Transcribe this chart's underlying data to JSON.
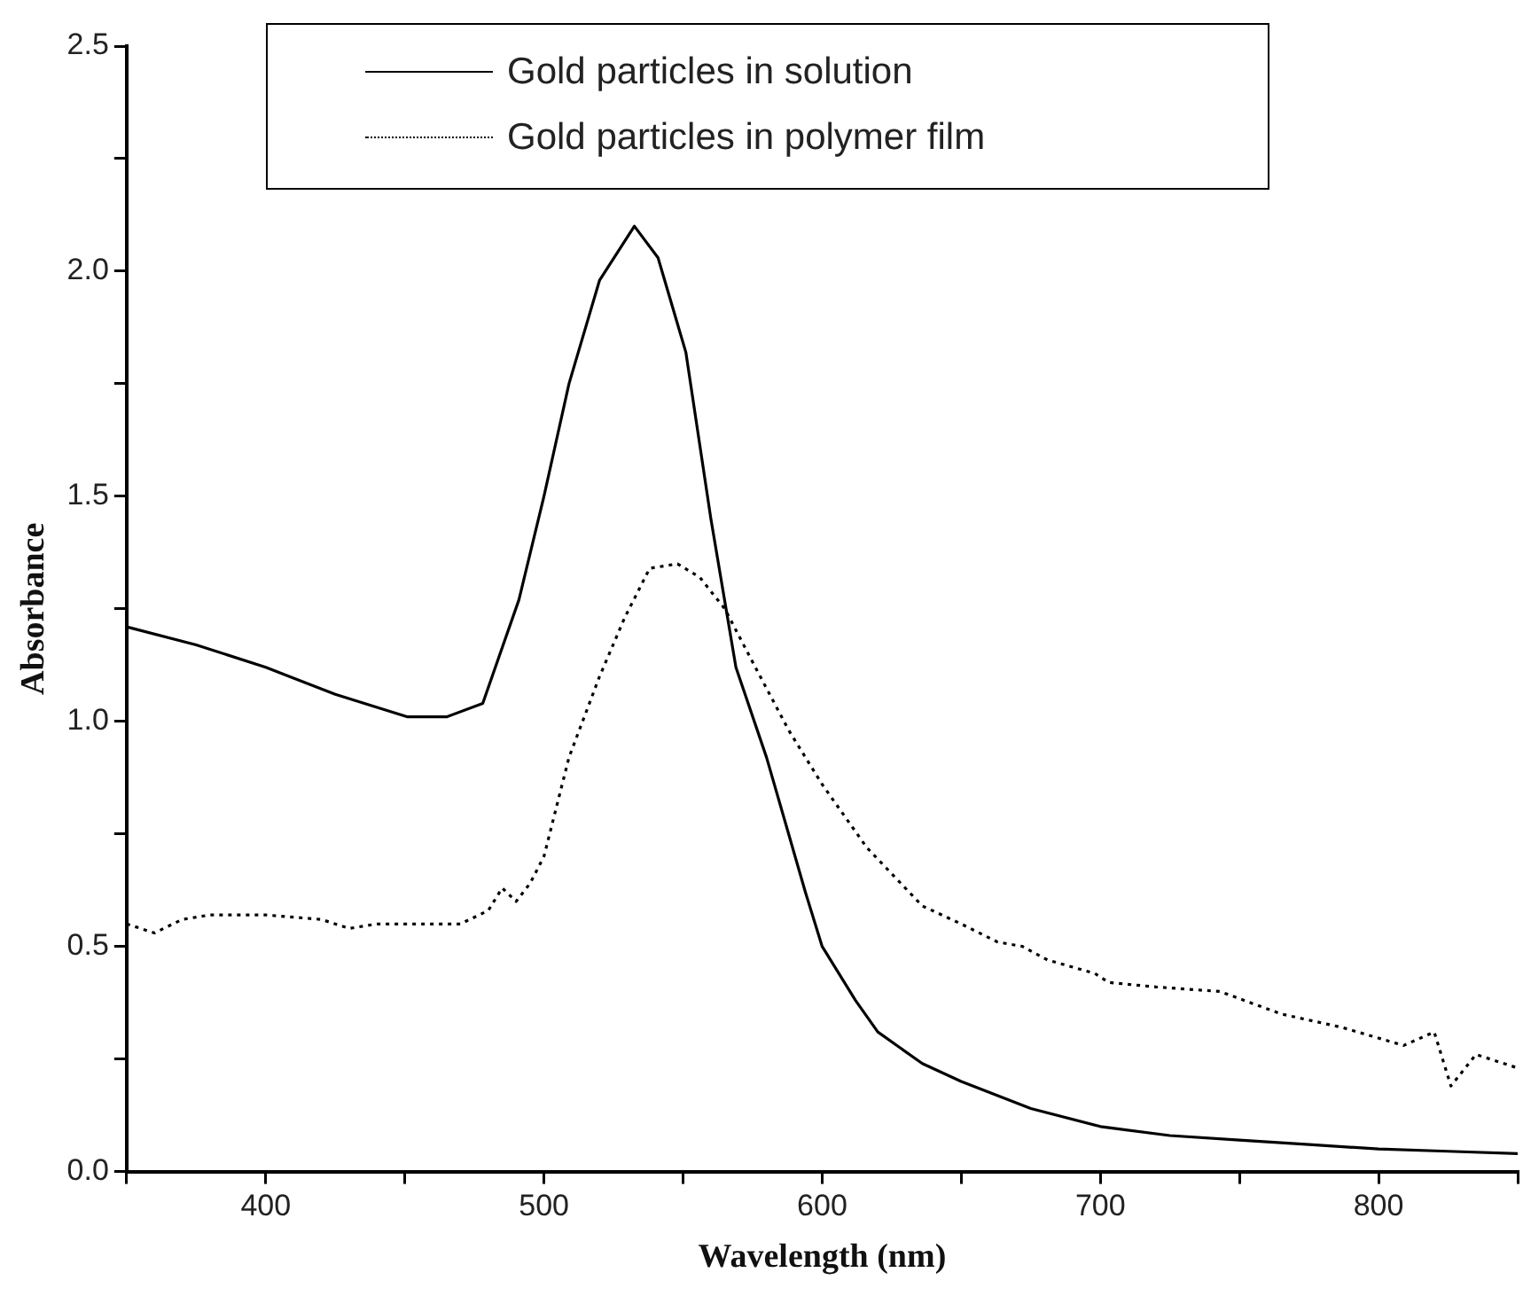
{
  "chart_data": {
    "type": "line",
    "xlabel": "Wavelength (nm)",
    "ylabel": "Absorbance",
    "xlim": [
      350,
      850
    ],
    "ylim": [
      0,
      2.5
    ],
    "xticks": [
      {
        "value": 350,
        "label": null
      },
      400,
      {
        "value": 450,
        "label": null
      },
      500,
      {
        "value": 550,
        "label": null
      },
      600,
      {
        "value": 650,
        "label": null
      },
      700,
      {
        "value": 750,
        "label": null
      },
      800,
      {
        "value": 850,
        "label": null
      }
    ],
    "yticks": [
      {
        "value": 0,
        "label": "0.0"
      },
      {
        "value": 0.25,
        "label": null
      },
      {
        "value": 0.5,
        "label": "0.5"
      },
      {
        "value": 0.75,
        "label": null
      },
      {
        "value": 1,
        "label": "1.0"
      },
      {
        "value": 1.25,
        "label": null
      },
      {
        "value": 1.5,
        "label": "1.5"
      },
      {
        "value": 1.75,
        "label": null
      },
      {
        "value": 2,
        "label": "2.0"
      },
      {
        "value": 2.25,
        "label": null
      },
      {
        "value": 2.5,
        "label": "2.5"
      }
    ],
    "grid": false,
    "legend": "top",
    "marker": "none",
    "series": [
      {
        "name": "Gold particles in solution",
        "color": "#000000",
        "line_style": "solid",
        "x": [
          350,
          375,
          400,
          425,
          451,
          465,
          478,
          491,
          500,
          509,
          520,
          532.5,
          541,
          551,
          560,
          569,
          580,
          587,
          594,
          600,
          612,
          620,
          636,
          650,
          675,
          700,
          725,
          750,
          775,
          800,
          825,
          850
        ],
        "values": [
          1.21,
          1.17,
          1.12,
          1.06,
          1.01,
          1.01,
          1.04,
          1.27,
          1.5,
          1.75,
          1.98,
          2.1,
          2.03,
          1.82,
          1.45,
          1.12,
          0.92,
          0.77,
          0.62,
          0.5,
          0.38,
          0.31,
          0.24,
          0.2,
          0.14,
          0.1,
          0.08,
          0.07,
          0.06,
          0.05,
          0.045,
          0.04
        ]
      },
      {
        "name": "Gold particles in polymer film",
        "color": "#000000",
        "line_style": "dotted",
        "x": [
          350,
          360,
          370,
          380,
          400,
          420,
          430,
          440,
          460,
          470,
          480,
          485,
          490,
          495,
          500,
          509,
          520,
          529,
          538,
          548,
          556,
          565,
          576,
          588,
          600,
          616,
          636,
          650,
          663,
          672,
          681,
          698,
          703,
          720,
          743,
          765,
          787,
          809,
          820,
          826,
          835,
          850
        ],
        "values": [
          0.55,
          0.53,
          0.56,
          0.57,
          0.57,
          0.56,
          0.54,
          0.55,
          0.55,
          0.55,
          0.58,
          0.63,
          0.6,
          0.64,
          0.7,
          0.92,
          1.1,
          1.23,
          1.34,
          1.35,
          1.32,
          1.25,
          1.12,
          0.98,
          0.86,
          0.72,
          0.59,
          0.55,
          0.51,
          0.5,
          0.47,
          0.44,
          0.42,
          0.41,
          0.4,
          0.35,
          0.32,
          0.28,
          0.31,
          0.19,
          0.26,
          0.23
        ]
      }
    ]
  }
}
